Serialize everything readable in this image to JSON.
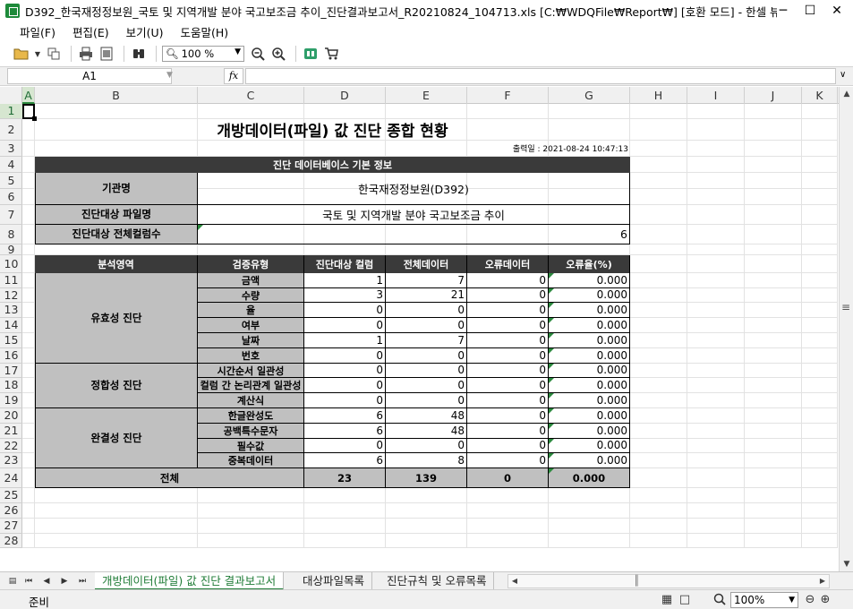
{
  "window": {
    "title": "D392_한국재정정보원_국토 및 지역개발 분야 국고보조금 추이_진단결과보고서_R20210824_104713.xls [C:₩WDQFile₩Report₩] [호환 모드] - 한셀 뷰어",
    "minimize_icon": "minimize-icon",
    "maximize_icon": "maximize-icon",
    "close_icon": "close-icon"
  },
  "menu": [
    {
      "label": "파일(F)"
    },
    {
      "label": "편집(E)"
    },
    {
      "label": "보기(U)"
    },
    {
      "label": "도움말(H)"
    }
  ],
  "toolbar": {
    "zoom": "100 %"
  },
  "formula_bar": {
    "cell_ref": "A1",
    "fx_label": "fx",
    "content": ""
  },
  "columns": [
    "A",
    "B",
    "C",
    "D",
    "E",
    "F",
    "G",
    "H",
    "I",
    "J",
    "K"
  ],
  "rows": [
    "1",
    "2",
    "3",
    "4",
    "5",
    "6",
    "7",
    "8",
    "9",
    "10",
    "11",
    "12",
    "13",
    "14",
    "15",
    "16",
    "17",
    "18",
    "19",
    "20",
    "21",
    "22",
    "23",
    "24",
    "25",
    "26",
    "27",
    "28"
  ],
  "sheet": {
    "title": "개방데이터(파일) 값 진단 종합 현황",
    "print_date": "출력일 : 2021-08-24 10:47:13",
    "section_header": "진단 데이터베이스 기본 정보",
    "org_label": "기관명",
    "org_value": "한국재정정보원(D392)",
    "file_label": "진단대상 파일명",
    "file_value": "국토 및 지역개발 분야 국고보조금 추이",
    "col_count_label": "진단대상 전체컬럼수",
    "col_count_value": "6",
    "table_headers": [
      "분석영역",
      "검증유형",
      "진단대상 컬럼",
      "전체데이터",
      "오류데이터",
      "오류율(%)"
    ],
    "groups": [
      {
        "name": "유효성 진단",
        "rows": [
          {
            "type": "금액",
            "cols": "1",
            "total": "7",
            "errors": "0",
            "rate": "0.000"
          },
          {
            "type": "수량",
            "cols": "3",
            "total": "21",
            "errors": "0",
            "rate": "0.000"
          },
          {
            "type": "율",
            "cols": "0",
            "total": "0",
            "errors": "0",
            "rate": "0.000"
          },
          {
            "type": "여부",
            "cols": "0",
            "total": "0",
            "errors": "0",
            "rate": "0.000"
          },
          {
            "type": "날짜",
            "cols": "1",
            "total": "7",
            "errors": "0",
            "rate": "0.000"
          },
          {
            "type": "번호",
            "cols": "0",
            "total": "0",
            "errors": "0",
            "rate": "0.000"
          }
        ]
      },
      {
        "name": "정합성 진단",
        "rows": [
          {
            "type": "시간순서 일관성",
            "cols": "0",
            "total": "0",
            "errors": "0",
            "rate": "0.000"
          },
          {
            "type": "컬럼 간 논리관계 일관성",
            "cols": "0",
            "total": "0",
            "errors": "0",
            "rate": "0.000"
          },
          {
            "type": "계산식",
            "cols": "0",
            "total": "0",
            "errors": "0",
            "rate": "0.000"
          }
        ]
      },
      {
        "name": "완결성 진단",
        "rows": [
          {
            "type": "한글완성도",
            "cols": "6",
            "total": "48",
            "errors": "0",
            "rate": "0.000"
          },
          {
            "type": "공백특수문자",
            "cols": "6",
            "total": "48",
            "errors": "0",
            "rate": "0.000"
          },
          {
            "type": "필수값",
            "cols": "0",
            "total": "0",
            "errors": "0",
            "rate": "0.000"
          },
          {
            "type": "중복데이터",
            "cols": "6",
            "total": "8",
            "errors": "0",
            "rate": "0.000"
          }
        ]
      }
    ],
    "total": {
      "label": "전체",
      "cols": "23",
      "total": "139",
      "errors": "0",
      "rate": "0.000"
    }
  },
  "tabs": [
    {
      "label": "개방데이터(파일) 값 진단 결과보고서",
      "active": true
    },
    {
      "label": "대상파일목록",
      "active": false
    },
    {
      "label": "진단규칙 및 오류목록",
      "active": false
    }
  ],
  "status": {
    "ready": "준비",
    "zoom": "100%"
  }
}
